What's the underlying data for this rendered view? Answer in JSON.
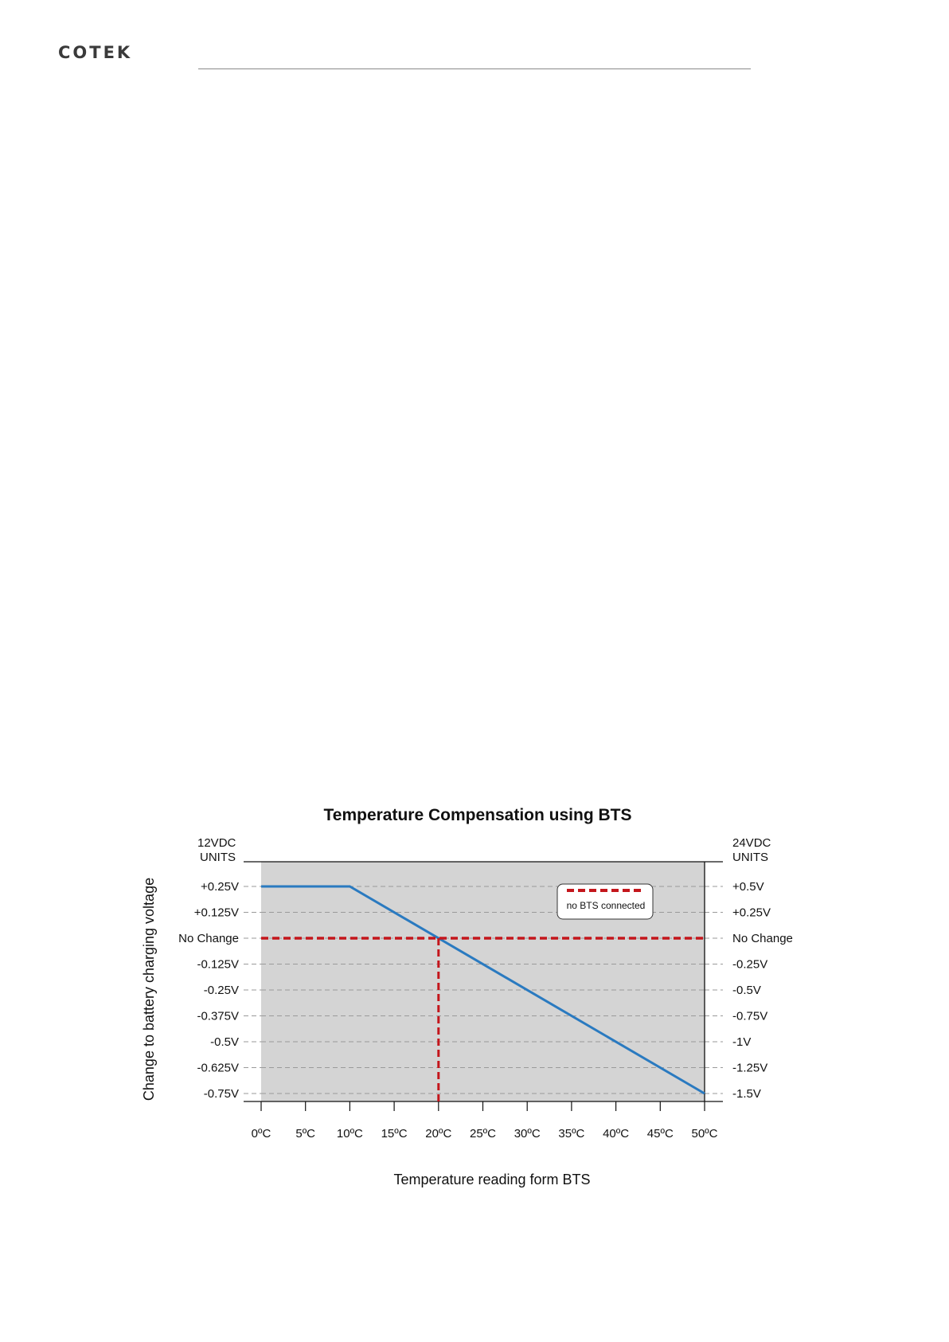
{
  "header": {
    "logo_text": "COTEK"
  },
  "chart_data": {
    "type": "line",
    "title": "Temperature Compensation using BTS",
    "xlabel": "Temperature reading form BTS",
    "ylabel": "Change to battery charging voltage",
    "left_axis_title": [
      "12VDC",
      "UNITS"
    ],
    "right_axis_title": [
      "24VDC",
      "UNITS"
    ],
    "x_ticks": [
      0,
      5,
      10,
      15,
      20,
      25,
      30,
      35,
      40,
      45,
      50
    ],
    "x_tick_labels": [
      "0ºC",
      "5ºC",
      "10ºC",
      "15ºC",
      "20ºC",
      "25ºC",
      "30ºC",
      "35ºC",
      "40ºC",
      "45ºC",
      "50ºC"
    ],
    "xlim": [
      0,
      50
    ],
    "ylim": [
      -0.75,
      0.25
    ],
    "y_ticks": [
      0.25,
      0.125,
      0,
      -0.125,
      -0.25,
      -0.375,
      -0.5,
      -0.625,
      -0.75
    ],
    "y_tick_labels_left": [
      "+0.25V",
      "+0.125V",
      "No Change",
      "-0.125V",
      "-0.25V",
      "-0.375V",
      "-0.5V",
      "-0.625V",
      "-0.75V"
    ],
    "y_tick_labels_right": [
      "+0.5V",
      "+0.25V",
      "No Change",
      "-0.25V",
      "-0.5V",
      "-0.75V",
      "-1V",
      "-1.25V",
      "-1.5V"
    ],
    "grid": true,
    "legend_position": "top-right",
    "series": [
      {
        "color": "#2a7ac0",
        "style": "solid",
        "x": [
          0,
          10,
          50
        ],
        "y": [
          0.25,
          0.25,
          -0.75
        ]
      },
      {
        "name": "no BTS connected",
        "color": "#c4161c",
        "style": "dashed",
        "x": [
          0,
          50
        ],
        "y": [
          0,
          0
        ],
        "drop_line_x": 20
      }
    ]
  }
}
